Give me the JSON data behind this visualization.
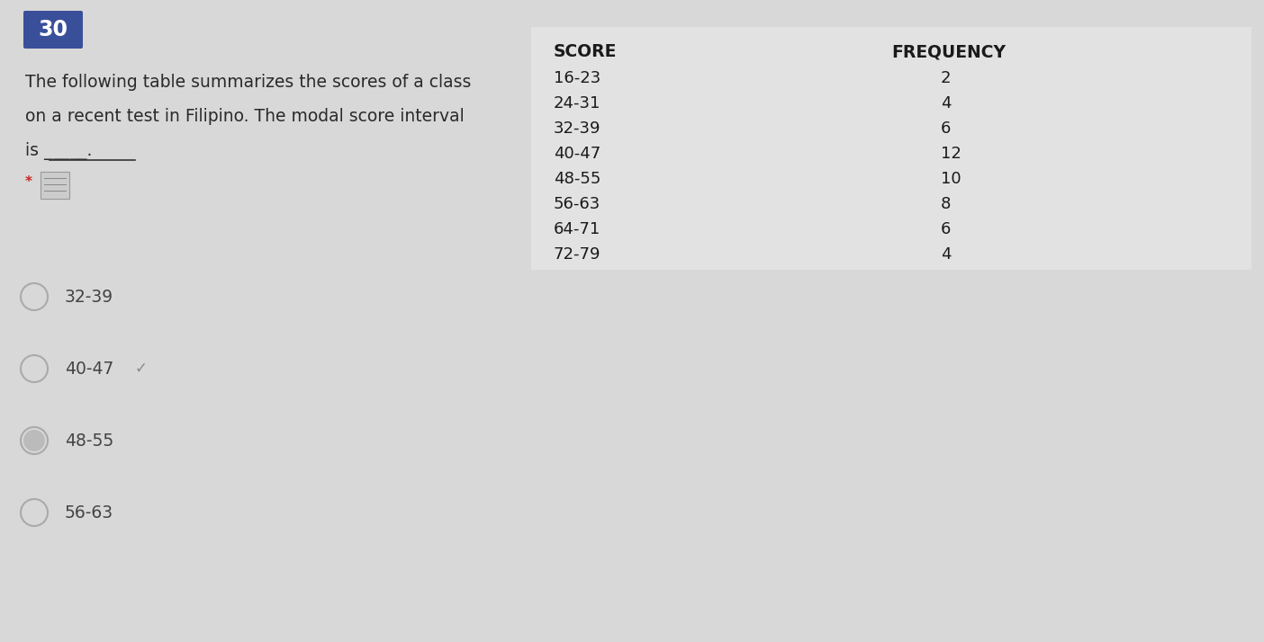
{
  "background_color": "#d8d8d8",
  "number_box_color": "#3a4f9a",
  "number_box_text": "30",
  "number_box_text_color": "#ffffff",
  "question_lines": [
    "The following table summarizes the scores of a class",
    "on a recent test in Filipino. The modal score interval",
    "is _____."
  ],
  "table_header_score": "SCORE",
  "table_header_freq": "FREQUENCY",
  "table_data": [
    [
      "16-23",
      "2"
    ],
    [
      "24-31",
      "4"
    ],
    [
      "32-39",
      "6"
    ],
    [
      "40-47",
      "12"
    ],
    [
      "48-55",
      "10"
    ],
    [
      "56-63",
      "8"
    ],
    [
      "64-71",
      "6"
    ],
    [
      "72-79",
      "4"
    ]
  ],
  "choices": [
    "32-39",
    "40-47",
    "48-55",
    "56-63"
  ],
  "correct_choice_index": 1,
  "selected_choice_index": 2,
  "text_color": "#2a2a2a",
  "table_text_color": "#1a1a1a",
  "choice_text_color": "#444444",
  "check_color": "#888888",
  "asterisk_color": "#cc2222",
  "radio_edge_color": "#aaaaaa",
  "radio_fill_color": "#bbbbbb",
  "underline_color": "#333333"
}
